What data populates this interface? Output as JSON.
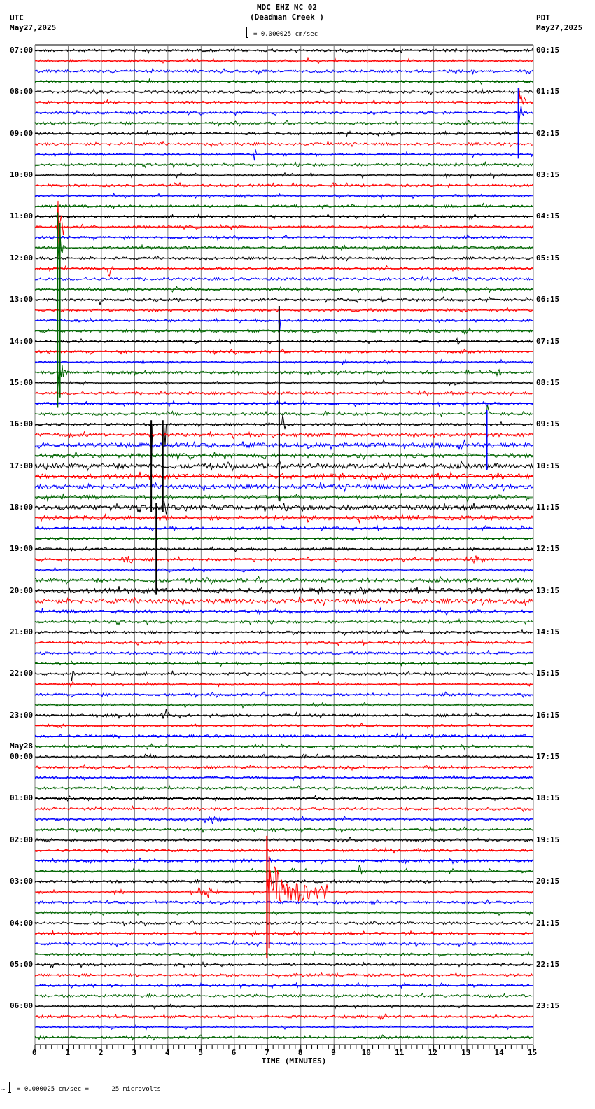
{
  "header": {
    "station": "MDC EHZ NC 02",
    "location": "(Deadman Creek )",
    "scale_text": "= 0.000025 cm/sec",
    "left_tz": "UTC",
    "left_date": "May27,2025",
    "right_tz": "PDT",
    "right_date": "May27,2025"
  },
  "footer": {
    "scale_text": "= 0.000025 cm/sec =      25 microvolts",
    "xlabel": "TIME (MINUTES)"
  },
  "colors": {
    "trace_cycle": [
      "#000000",
      "#ff0000",
      "#0000ff",
      "#006400"
    ],
    "grid": "#808080"
  },
  "chart_data": {
    "type": "line",
    "title": "MDC EHZ NC 02 (Deadman Creek )",
    "xlabel": "TIME (MINUTES)",
    "ylabel": "",
    "x_range": [
      0,
      15
    ],
    "x_ticks": [
      0,
      1,
      2,
      3,
      4,
      5,
      6,
      7,
      8,
      9,
      10,
      11,
      12,
      13,
      14,
      15
    ],
    "grid": true,
    "traces_per_hour": 4,
    "trace_count": 96,
    "left_labels": [
      {
        "row": 0,
        "text": "07:00"
      },
      {
        "row": 4,
        "text": "08:00"
      },
      {
        "row": 8,
        "text": "09:00"
      },
      {
        "row": 12,
        "text": "10:00"
      },
      {
        "row": 16,
        "text": "11:00"
      },
      {
        "row": 20,
        "text": "12:00"
      },
      {
        "row": 24,
        "text": "13:00"
      },
      {
        "row": 28,
        "text": "14:00"
      },
      {
        "row": 32,
        "text": "15:00"
      },
      {
        "row": 36,
        "text": "16:00"
      },
      {
        "row": 40,
        "text": "17:00"
      },
      {
        "row": 44,
        "text": "18:00"
      },
      {
        "row": 48,
        "text": "19:00"
      },
      {
        "row": 52,
        "text": "20:00"
      },
      {
        "row": 56,
        "text": "21:00"
      },
      {
        "row": 60,
        "text": "22:00"
      },
      {
        "row": 64,
        "text": "23:00"
      },
      {
        "row": 67,
        "text": "May28"
      },
      {
        "row": 68,
        "text": "00:00"
      },
      {
        "row": 72,
        "text": "01:00"
      },
      {
        "row": 76,
        "text": "02:00"
      },
      {
        "row": 80,
        "text": "03:00"
      },
      {
        "row": 84,
        "text": "04:00"
      },
      {
        "row": 88,
        "text": "05:00"
      },
      {
        "row": 92,
        "text": "06:00"
      }
    ],
    "right_labels": [
      {
        "row": 0,
        "text": "00:15"
      },
      {
        "row": 4,
        "text": "01:15"
      },
      {
        "row": 8,
        "text": "02:15"
      },
      {
        "row": 12,
        "text": "03:15"
      },
      {
        "row": 16,
        "text": "04:15"
      },
      {
        "row": 20,
        "text": "05:15"
      },
      {
        "row": 24,
        "text": "06:15"
      },
      {
        "row": 28,
        "text": "07:15"
      },
      {
        "row": 32,
        "text": "08:15"
      },
      {
        "row": 36,
        "text": "09:15"
      },
      {
        "row": 40,
        "text": "10:15"
      },
      {
        "row": 44,
        "text": "11:15"
      },
      {
        "row": 48,
        "text": "12:15"
      },
      {
        "row": 52,
        "text": "13:15"
      },
      {
        "row": 56,
        "text": "14:15"
      },
      {
        "row": 60,
        "text": "15:15"
      },
      {
        "row": 64,
        "text": "16:15"
      },
      {
        "row": 68,
        "text": "17:15"
      },
      {
        "row": 72,
        "text": "18:15"
      },
      {
        "row": 76,
        "text": "19:15"
      },
      {
        "row": 80,
        "text": "20:15"
      },
      {
        "row": 84,
        "text": "21:15"
      },
      {
        "row": 88,
        "text": "22:15"
      },
      {
        "row": 92,
        "text": "23:15"
      }
    ],
    "noise_levels": {
      "default": 1.8,
      "by_row": {
        "37": 2.5,
        "38": 3.2,
        "39": 3.0,
        "40": 3.4,
        "41": 3.2,
        "42": 3.2,
        "43": 2.8,
        "44": 3.4,
        "45": 3.0,
        "51": 2.6,
        "52": 3.2,
        "53": 3.0,
        "54": 2.4
      }
    },
    "events": [
      {
        "row": 5,
        "minute": 14.55,
        "amp": 38,
        "dur": 0.25,
        "kind": "spike"
      },
      {
        "row": 6,
        "minute": 14.55,
        "amp": 30,
        "dur": 0.2,
        "kind": "spike"
      },
      {
        "row": 10,
        "minute": 6.6,
        "amp": 22,
        "dur": 0.1,
        "kind": "spike"
      },
      {
        "row": 11,
        "minute": 14.35,
        "amp": 8,
        "dur": 0.1,
        "kind": "spike"
      },
      {
        "row": 16,
        "minute": 10.45,
        "amp": 9,
        "dur": 0.1,
        "kind": "spike"
      },
      {
        "row": 17,
        "minute": 0.65,
        "amp": 120,
        "dur": 0.25,
        "kind": "spike"
      },
      {
        "row": 19,
        "minute": 0.65,
        "amp": 60,
        "dur": 0.25,
        "kind": "spike"
      },
      {
        "row": 21,
        "minute": 2.2,
        "amp": 22,
        "dur": 0.15,
        "kind": "spike"
      },
      {
        "row": 24,
        "minute": 1.95,
        "amp": 8,
        "dur": 0.1,
        "kind": "spike"
      },
      {
        "row": 26,
        "minute": 7.35,
        "amp": 40,
        "dur": 0.05,
        "kind": "spike"
      },
      {
        "row": 28,
        "minute": 12.7,
        "amp": 18,
        "dur": 0.1,
        "kind": "spike"
      },
      {
        "row": 31,
        "minute": 0.7,
        "amp": 30,
        "dur": 0.3,
        "kind": "spike"
      },
      {
        "row": 31,
        "minute": 13.9,
        "amp": 12,
        "dur": 0.1,
        "kind": "spike"
      },
      {
        "row": 35,
        "minute": 13.6,
        "amp": 20,
        "dur": 0.1,
        "kind": "spike"
      },
      {
        "row": 36,
        "minute": 3.5,
        "amp": 90,
        "dur": 0.05,
        "kind": "spike"
      },
      {
        "row": 36,
        "minute": 3.9,
        "amp": 90,
        "dur": 0.05,
        "kind": "spike"
      },
      {
        "row": 36,
        "minute": 7.45,
        "amp": 40,
        "dur": 0.1,
        "kind": "spike"
      },
      {
        "row": 44,
        "minute": 3.8,
        "amp": 20,
        "dur": 0.4,
        "kind": "spike"
      },
      {
        "row": 49,
        "minute": 2.8,
        "amp": 8,
        "dur": 0.3,
        "kind": "burst"
      },
      {
        "row": 49,
        "minute": 13.2,
        "amp": 7,
        "dur": 0.4,
        "kind": "burst"
      },
      {
        "row": 60,
        "minute": 1.1,
        "amp": 14,
        "dur": 0.1,
        "kind": "spike"
      },
      {
        "row": 61,
        "minute": 10.5,
        "amp": 9,
        "dur": 0.1,
        "kind": "spike"
      },
      {
        "row": 62,
        "minute": 13.35,
        "amp": 16,
        "dur": 0.1,
        "kind": "spike"
      },
      {
        "row": 64,
        "minute": 3.95,
        "amp": 10,
        "dur": 0.2,
        "kind": "burst"
      },
      {
        "row": 64,
        "minute": 12.9,
        "amp": 8,
        "dur": 0.1,
        "kind": "spike"
      },
      {
        "row": 74,
        "minute": 5.4,
        "amp": 6,
        "dur": 0.6,
        "kind": "burst"
      },
      {
        "row": 79,
        "minute": 9.75,
        "amp": 25,
        "dur": 0.1,
        "kind": "spike"
      },
      {
        "row": 81,
        "minute": 2.5,
        "amp": 7,
        "dur": 0.3,
        "kind": "burst"
      },
      {
        "row": 81,
        "minute": 5.1,
        "amp": 10,
        "dur": 0.5,
        "kind": "burst"
      },
      {
        "row": 81,
        "minute": 7.0,
        "amp": 150,
        "dur": 1.8,
        "kind": "quake"
      }
    ],
    "vertical_marks": [
      {
        "minute": 0.68,
        "y_from_row": 16,
        "y_to_row": 34,
        "color": "#006400"
      },
      {
        "minute": 0.75,
        "y_from_row": 17,
        "y_to_row": 33,
        "color": "#006400"
      },
      {
        "minute": 7.35,
        "y_from_row": 25,
        "y_to_row": 43,
        "color": "#000000"
      },
      {
        "minute": 3.5,
        "y_from_row": 36,
        "y_to_row": 44,
        "color": "#000000"
      },
      {
        "minute": 3.85,
        "y_from_row": 36,
        "y_to_row": 44,
        "color": "#000000"
      },
      {
        "minute": 3.65,
        "y_from_row": 44,
        "y_to_row": 52,
        "color": "#000000"
      },
      {
        "minute": 13.6,
        "y_from_row": 35,
        "y_to_row": 40,
        "color": "#0000ff"
      },
      {
        "minute": 14.55,
        "y_from_row": 4,
        "y_to_row": 10,
        "color": "#0000ff"
      },
      {
        "minute": 6.98,
        "y_from_row": 76,
        "y_to_row": 87,
        "color": "#ff0000"
      },
      {
        "minute": 7.05,
        "y_from_row": 78,
        "y_to_row": 86,
        "color": "#ff0000"
      }
    ]
  }
}
